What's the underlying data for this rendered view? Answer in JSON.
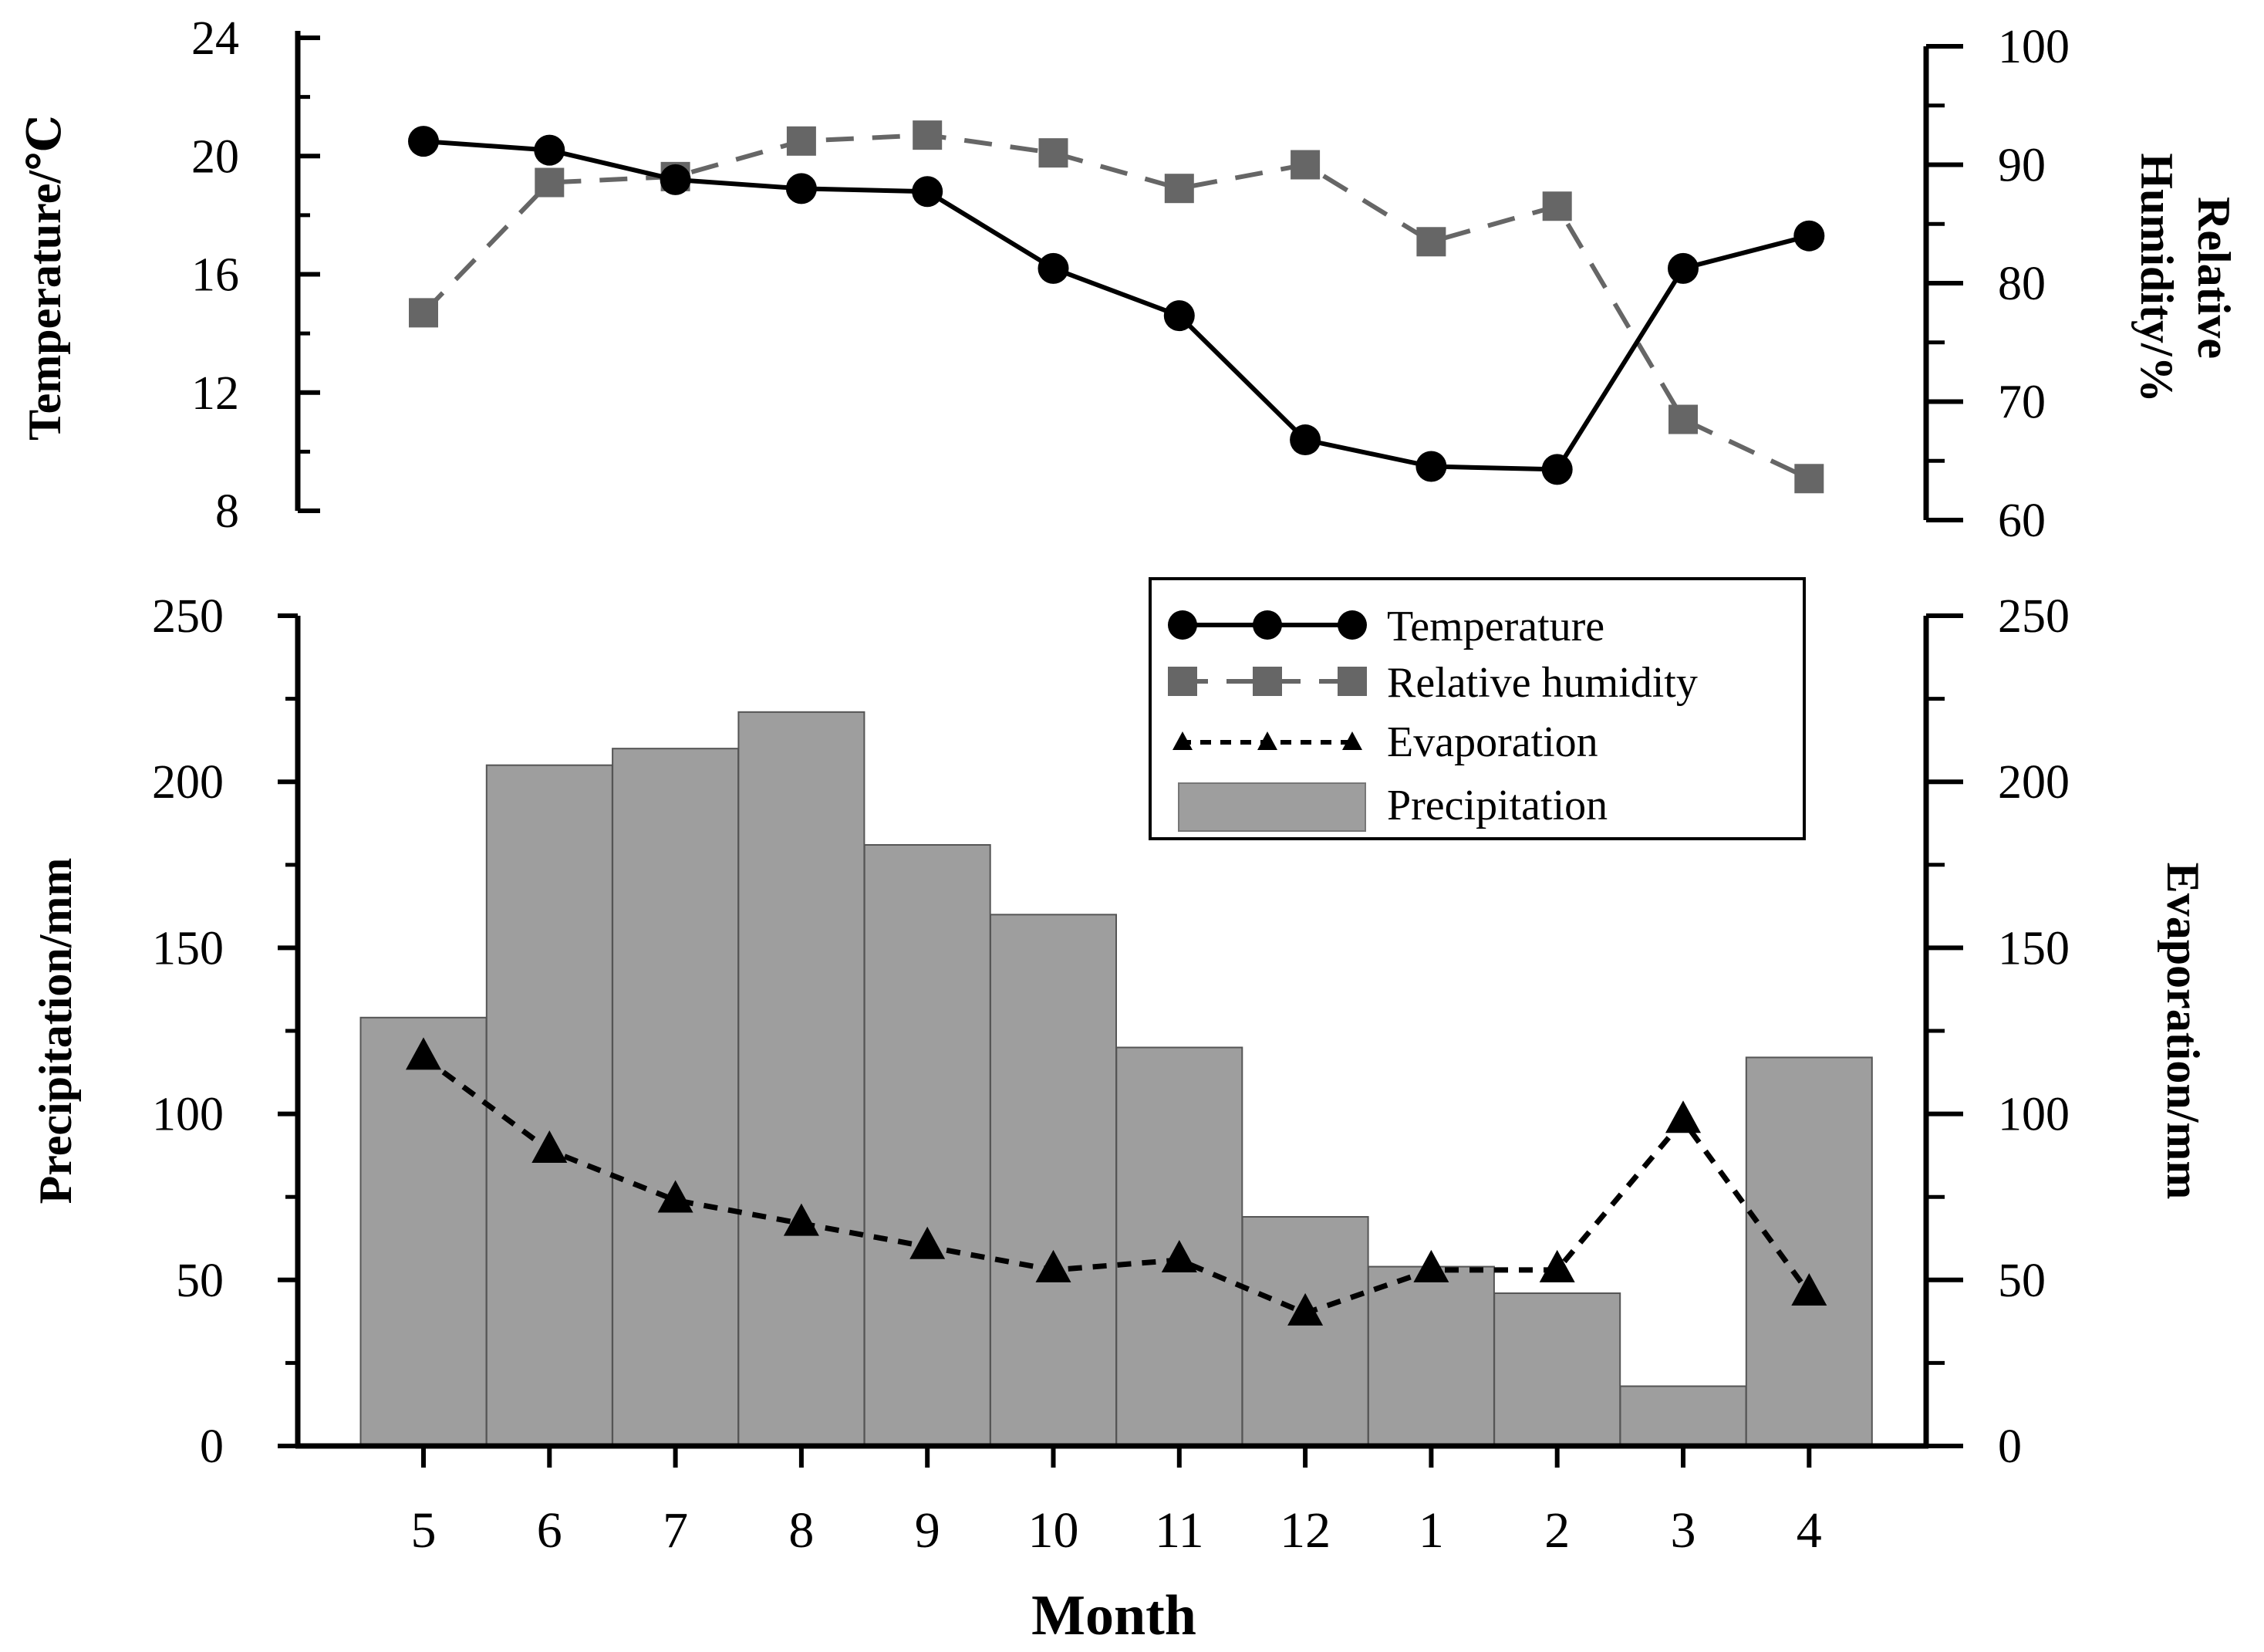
{
  "chart_data": [
    {
      "type": "line",
      "categories": [
        "5",
        "6",
        "7",
        "8",
        "9",
        "10",
        "11",
        "12",
        "1",
        "2",
        "3",
        "4"
      ],
      "series": [
        {
          "name": "Temperature",
          "axis": "left",
          "color": "#000000",
          "marker": "circle",
          "line": "solid",
          "values": [
            20.5,
            20.2,
            19.2,
            18.9,
            18.8,
            16.2,
            14.6,
            10.4,
            9.5,
            9.4,
            16.2,
            17.3
          ]
        },
        {
          "name": "Relative humidity",
          "axis": "right",
          "color": "#666666",
          "marker": "square",
          "line": "dashed",
          "values": [
            77.5,
            88.5,
            89,
            92,
            92.5,
            91,
            88,
            90,
            83.5,
            86.5,
            68.5,
            63.5
          ]
        }
      ],
      "ylabel": "Temperature/℃",
      "ylim": [
        8,
        24
      ],
      "yticks": [
        "8",
        "12",
        "16",
        "20",
        "24"
      ],
      "y2label_lines": [
        "Relative",
        "Humidity/%"
      ],
      "y2lim": [
        60,
        100
      ],
      "y2ticks": [
        "60",
        "70",
        "80",
        "90",
        "100"
      ]
    },
    {
      "type": "bar",
      "categories": [
        "5",
        "6",
        "7",
        "8",
        "9",
        "10",
        "11",
        "12",
        "1",
        "2",
        "3",
        "4"
      ],
      "series": [
        {
          "name": "Precipitation",
          "axis": "left",
          "color": "#9e9e9e",
          "values": [
            129,
            205,
            210,
            221,
            181,
            160,
            120,
            69,
            54,
            46,
            18,
            117
          ]
        },
        {
          "name": "Evaporation",
          "axis": "right",
          "color": "#000000",
          "marker": "triangle",
          "line": "dotted",
          "values": [
            117,
            89,
            74,
            67,
            60,
            53,
            56,
            40,
            53,
            53,
            98,
            46
          ]
        }
      ],
      "xlabel": "Month",
      "ylabel": "Precipitation/mm",
      "ylim": [
        0,
        250
      ],
      "yticks": [
        "0",
        "50",
        "100",
        "150",
        "200",
        "250"
      ],
      "y2label": "Evaporation/mm",
      "y2lim": [
        0,
        250
      ],
      "y2ticks": [
        "0",
        "50",
        "100",
        "150",
        "200",
        "250"
      ]
    }
  ],
  "legend": {
    "placement": "top-right",
    "items": [
      "Temperature",
      "Relative humidity",
      "Evaporation",
      "Precipitation"
    ]
  },
  "colors": {
    "bar": "#9e9e9e",
    "bar_edge": "#555555",
    "humidity": "#666666",
    "temperature": "#000000"
  }
}
